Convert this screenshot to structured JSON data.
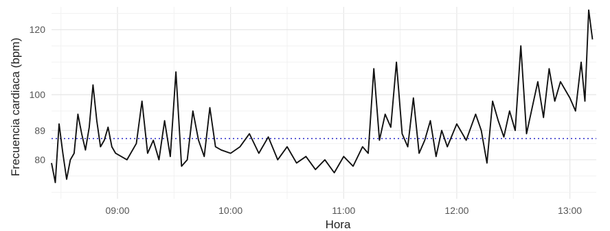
{
  "chart_data": {
    "type": "line",
    "title": "",
    "xlabel": "Hora",
    "ylabel": "Frecuencia cardiaca (bpm)",
    "x_ticks": [
      "09:00",
      "10:00",
      "11:00",
      "12:00",
      "13:00"
    ],
    "y_ticks": [
      80,
      89,
      100,
      120
    ],
    "xlim": [
      "08:25",
      "13:14"
    ],
    "ylim": [
      68,
      127
    ],
    "grid": true,
    "line_color": "#111111",
    "reference_line": {
      "value": 86.5,
      "style": "dotted",
      "color": "#3a3acc"
    },
    "series": [
      {
        "x": [
          "08:25",
          "08:27",
          "08:29",
          "08:31",
          "08:33",
          "08:35",
          "08:37",
          "08:39",
          "08:41",
          "08:43",
          "08:45",
          "08:47",
          "08:49",
          "08:51",
          "08:53",
          "08:55",
          "08:57",
          "08:59",
          "09:05",
          "09:10",
          "09:13",
          "09:16",
          "09:19",
          "09:22",
          "09:25",
          "09:28",
          "09:31",
          "09:34",
          "09:37",
          "09:40",
          "09:43",
          "09:46",
          "09:49",
          "09:52",
          "09:55",
          "10:00",
          "10:05",
          "10:10",
          "10:15",
          "10:20",
          "10:25",
          "10:30",
          "10:35",
          "10:40",
          "10:45",
          "10:50",
          "10:55",
          "11:00",
          "11:05",
          "11:10",
          "11:13",
          "11:16",
          "11:19",
          "11:22",
          "11:25",
          "11:28",
          "11:31",
          "11:34",
          "11:37",
          "11:40",
          "11:43",
          "11:46",
          "11:49",
          "11:52",
          "11:55",
          "12:00",
          "12:05",
          "12:10",
          "12:13",
          "12:16",
          "12:19",
          "12:22",
          "12:25",
          "12:28",
          "12:31",
          "12:34",
          "12:37",
          "12:40",
          "12:43",
          "12:46",
          "12:49",
          "12:52",
          "12:55",
          "13:00",
          "13:03",
          "13:06",
          "13:08",
          "13:10",
          "13:12"
        ],
        "y": [
          79,
          73,
          91,
          82,
          74,
          80,
          82,
          94,
          88,
          83,
          90,
          103,
          92,
          84,
          86,
          90,
          84,
          82,
          80,
          85,
          98,
          82,
          86,
          80,
          92,
          81,
          107,
          78,
          80,
          95,
          86,
          81,
          96,
          84,
          83,
          82,
          84,
          88,
          82,
          87,
          80,
          84,
          79,
          81,
          77,
          80,
          76,
          81,
          78,
          84,
          82,
          108,
          86,
          94,
          90,
          110,
          88,
          84,
          99,
          82,
          86,
          92,
          81,
          89,
          84,
          91,
          86,
          94,
          89,
          79,
          98,
          92,
          87,
          95,
          89,
          115,
          88,
          96,
          104,
          93,
          108,
          98,
          104,
          99,
          95,
          110,
          98,
          126,
          117
        ]
      }
    ]
  }
}
